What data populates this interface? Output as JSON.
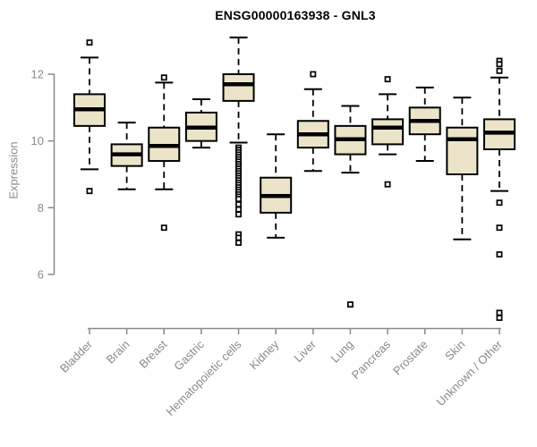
{
  "title": "ENSG00000163938 - GNL3",
  "colors": {
    "background": "#ffffff",
    "box_fill": "#ebe4c9",
    "box_stroke": "#000000",
    "median": "#000000",
    "whisker": "#000000",
    "outlier": "#000000",
    "axis": "#8a8a8a",
    "tick_text": "#8a8a8a",
    "title_text": "#000000"
  },
  "chart_data": {
    "type": "boxplot",
    "title": "ENSG00000163938 - GNL3",
    "xlabel": "",
    "ylabel": "Expression",
    "y_ticks": [
      6,
      8,
      10,
      12
    ],
    "y_axis_range": [
      6,
      12
    ],
    "plot_value_range": [
      4.4,
      13.3
    ],
    "grid": "off",
    "legend": "none",
    "categories": [
      "Bladder",
      "Brain",
      "Breast",
      "Gastric",
      "Hematopoietic cells",
      "Kidney",
      "Liver",
      "Lung",
      "Pancreas",
      "Prostate",
      "Skin",
      "Unknown / Other"
    ],
    "boxes": [
      {
        "label": "Bladder",
        "whisker_low": 9.15,
        "q1": 10.45,
        "median": 10.95,
        "q3": 11.4,
        "whisker_high": 12.5,
        "outliers": [
          12.95,
          8.5
        ]
      },
      {
        "label": "Brain",
        "whisker_low": 8.55,
        "q1": 9.25,
        "median": 9.6,
        "q3": 9.9,
        "whisker_high": 10.55,
        "outliers": []
      },
      {
        "label": "Breast",
        "whisker_low": 8.55,
        "q1": 9.4,
        "median": 9.85,
        "q3": 10.4,
        "whisker_high": 11.75,
        "outliers": [
          11.9,
          7.4
        ]
      },
      {
        "label": "Gastric",
        "whisker_low": 9.8,
        "q1": 10.0,
        "median": 10.4,
        "q3": 10.85,
        "whisker_high": 11.25,
        "outliers": []
      },
      {
        "label": "Hematopoietic cells",
        "whisker_low": 9.95,
        "q1": 11.2,
        "median": 11.7,
        "q3": 12.0,
        "whisker_high": 13.1,
        "outliers": [
          9.8,
          9.73,
          9.66,
          9.59,
          9.52,
          9.45,
          9.38,
          9.31,
          9.24,
          9.17,
          9.1,
          9.03,
          8.96,
          8.89,
          8.82,
          8.75,
          8.68,
          8.61,
          8.54,
          8.47,
          8.4,
          8.33,
          8.26,
          8.1,
          7.95,
          7.8,
          7.2,
          7.1,
          6.95
        ]
      },
      {
        "label": "Kidney",
        "whisker_low": 7.1,
        "q1": 7.85,
        "median": 8.35,
        "q3": 8.9,
        "whisker_high": 10.2,
        "outliers": []
      },
      {
        "label": "Liver",
        "whisker_low": 9.1,
        "q1": 9.8,
        "median": 10.2,
        "q3": 10.6,
        "whisker_high": 11.55,
        "outliers": [
          12.0
        ]
      },
      {
        "label": "Lung",
        "whisker_low": 9.05,
        "q1": 9.6,
        "median": 10.05,
        "q3": 10.45,
        "whisker_high": 11.05,
        "outliers": [
          5.1
        ]
      },
      {
        "label": "Pancreas",
        "whisker_low": 9.6,
        "q1": 9.9,
        "median": 10.4,
        "q3": 10.65,
        "whisker_high": 11.4,
        "outliers": [
          11.85,
          8.7
        ]
      },
      {
        "label": "Prostate",
        "whisker_low": 9.4,
        "q1": 10.2,
        "median": 10.6,
        "q3": 11.0,
        "whisker_high": 11.6,
        "outliers": []
      },
      {
        "label": "Skin",
        "whisker_low": 7.05,
        "q1": 9.0,
        "median": 10.05,
        "q3": 10.4,
        "whisker_high": 11.3,
        "outliers": []
      },
      {
        "label": "Unknown / Other",
        "whisker_low": 8.5,
        "q1": 9.75,
        "median": 10.25,
        "q3": 10.65,
        "whisker_high": 11.9,
        "outliers": [
          12.4,
          12.3,
          12.1,
          8.15,
          7.4,
          6.6,
          4.85,
          4.7
        ]
      }
    ]
  }
}
